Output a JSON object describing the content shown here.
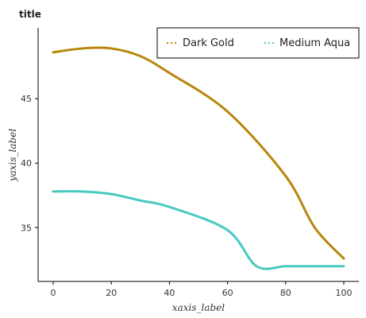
{
  "chart_data": {
    "type": "line",
    "title": "title",
    "xlabel": "xaxis_label",
    "ylabel": "yaxis_label",
    "x_ticks": [
      "0",
      "20",
      "40",
      "60",
      "80",
      "100"
    ],
    "y_ticks": [
      "35",
      "40",
      "45"
    ],
    "xlim": [
      0,
      100
    ],
    "ylim": [
      31.5,
      50.5
    ],
    "legend_position": "top-right",
    "series": [
      {
        "name": "Dark Gold",
        "color": "#b8860b",
        "line_style": "solid",
        "x": [
          0,
          10,
          20,
          30,
          40,
          60,
          80,
          90,
          100
        ],
        "y": [
          48.6,
          48.9,
          48.9,
          48.3,
          47.0,
          44.0,
          39.0,
          35.0,
          32.6
        ]
      },
      {
        "name": "Medium Aqua",
        "color": "#48c9c0",
        "line_style": "solid",
        "x": [
          0,
          10,
          20,
          30,
          40,
          60,
          70,
          80,
          90,
          100
        ],
        "y": [
          37.8,
          37.8,
          37.6,
          37.1,
          36.6,
          34.8,
          32.0,
          32.0,
          32.0,
          32.0
        ]
      }
    ]
  }
}
